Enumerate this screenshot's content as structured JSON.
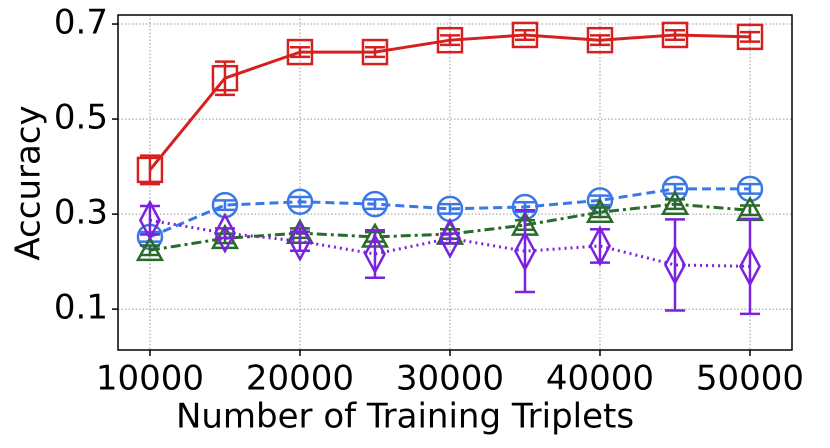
{
  "chart_data": {
    "type": "line",
    "x_label": "Number of Training Triplets",
    "y_label": "Accuracy",
    "x": [
      10000,
      15000,
      20000,
      25000,
      30000,
      35000,
      40000,
      45000,
      50000
    ],
    "xlim": [
      7870,
      52800
    ],
    "ylim": [
      0.014,
      0.719
    ],
    "xticks": [
      10000,
      20000,
      30000,
      40000,
      50000
    ],
    "yticks": [
      0.1,
      0.3,
      0.5,
      0.7
    ],
    "grid": true,
    "series": [
      {
        "color": "#d62020",
        "marker": "square",
        "dash": "solid",
        "values": [
          0.393,
          0.586,
          0.641,
          0.641,
          0.666,
          0.677,
          0.666,
          0.677,
          0.673
        ],
        "errors": [
          0.03,
          0.035,
          0.01,
          0.01,
          0.01,
          0.01,
          0.01,
          0.01,
          0.01
        ]
      },
      {
        "color": "#3a78e8",
        "marker": "circle",
        "dash": "dashed",
        "values": [
          0.252,
          0.319,
          0.326,
          0.321,
          0.311,
          0.315,
          0.329,
          0.353,
          0.353
        ],
        "errors": [
          0.01,
          0.01,
          0.01,
          0.01,
          0.01,
          0.01,
          0.01,
          0.01,
          0.01
        ]
      },
      {
        "color": "#2a6a2a",
        "marker": "triangle",
        "dash": "dashdot",
        "values": [
          0.224,
          0.249,
          0.26,
          0.252,
          0.258,
          0.277,
          0.304,
          0.321,
          0.308
        ],
        "errors": [
          0.01,
          0.01,
          0.01,
          0.01,
          0.01,
          0.01,
          0.01,
          0.01,
          0.01
        ]
      },
      {
        "color": "#7a22dd",
        "marker": "diamond",
        "dash": "dotted",
        "values": [
          0.287,
          0.26,
          0.243,
          0.216,
          0.249,
          0.222,
          0.233,
          0.193,
          0.19
        ],
        "errors": [
          0.03,
          0.01,
          0.02,
          0.05,
          0.01,
          0.086,
          0.035,
          0.096,
          0.1
        ]
      }
    ]
  }
}
